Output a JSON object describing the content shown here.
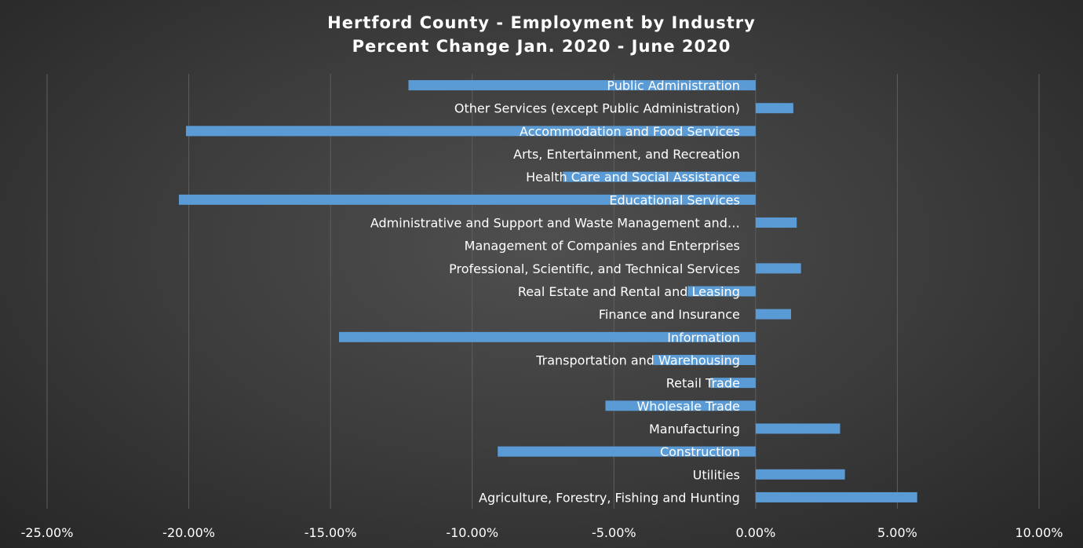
{
  "chart_data": {
    "type": "bar",
    "orientation": "horizontal",
    "title": "Hertford County - Employment by Industry",
    "subtitle": "Percent Change Jan. 2020 - June 2020",
    "xlabel": "",
    "ylabel": "",
    "xlim": [
      -0.25,
      0.1
    ],
    "xticks": [
      -0.25,
      -0.2,
      -0.15,
      -0.1,
      -0.05,
      0.0,
      0.05,
      0.1
    ],
    "xtick_labels": [
      "-25.00%",
      "-20.00%",
      "-15.00%",
      "-10.00%",
      "-5.00%",
      "0.00%",
      "5.00%",
      "10.00%"
    ],
    "grid": true,
    "legend": "none",
    "bar_color": "#5b9bd5",
    "categories": [
      "Agriculture, Forestry, Fishing and Hunting",
      "Utilities",
      "Construction",
      "Manufacturing",
      "Wholesale Trade",
      "Retail Trade",
      "Transportation and Warehousing",
      "Information",
      "Finance and Insurance",
      "Real Estate and Rental and Leasing",
      "Professional, Scientific, and Technical Services",
      "Management of Companies and Enterprises",
      "Administrative and Support and Waste Management and…",
      "Educational Services",
      "Health Care and Social Assistance",
      "Arts, Entertainment, and Recreation",
      "Accommodation and Food Services",
      "Other Services (except Public Administration)",
      "Public Administration"
    ],
    "values": [
      0.057,
      0.0315,
      -0.091,
      0.0298,
      -0.053,
      -0.016,
      -0.036,
      -0.147,
      0.0125,
      -0.024,
      0.016,
      0.0,
      0.0145,
      -0.2035,
      -0.068,
      0.0,
      -0.201,
      0.0133,
      -0.1225
    ]
  }
}
